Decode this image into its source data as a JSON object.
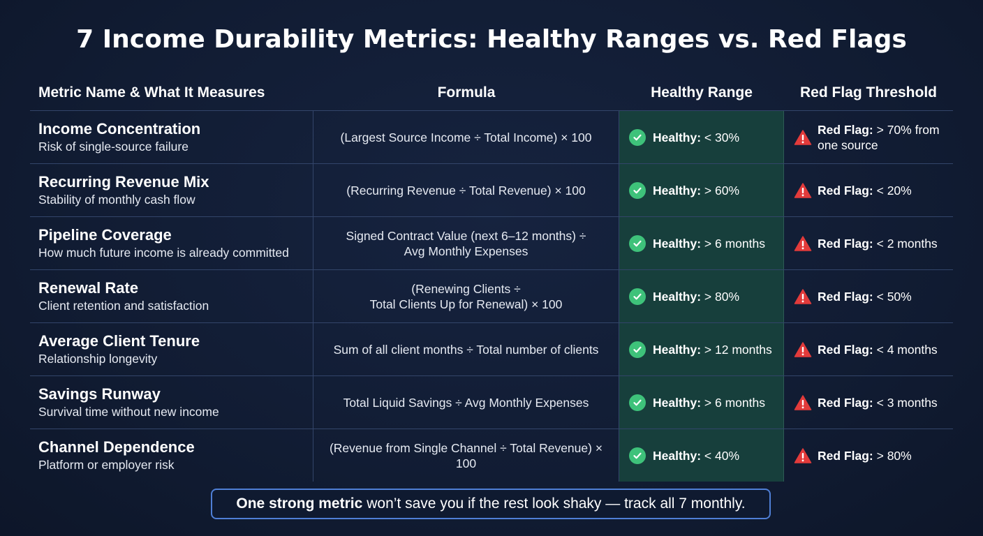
{
  "title": "7 Income Durability Metrics: Healthy Ranges vs. Red Flags",
  "headers": {
    "metric": "Metric Name & What It Measures",
    "formula": "Formula",
    "healthy": "Healthy Range",
    "red_flag": "Red Flag Threshold"
  },
  "healthy_label": "Healthy:",
  "red_flag_label": "Red Flag:",
  "rows": [
    {
      "name": "Income Concentration",
      "desc": "Risk of single-source failure",
      "formula_1": "(Largest Source Income ÷ Total Income) × 100",
      "formula_2": "",
      "healthy": "< 30%",
      "red_flag_1": "> 70% from",
      "red_flag_2": "one source"
    },
    {
      "name": "Recurring Revenue Mix",
      "desc": "Stability of monthly cash flow",
      "formula_1": "(Recurring Revenue ÷ Total Revenue) × 100",
      "formula_2": "",
      "healthy": "> 60%",
      "red_flag_1": "< 20%",
      "red_flag_2": ""
    },
    {
      "name": "Pipeline Coverage",
      "desc": "How much future income is already committed",
      "formula_1": "Signed Contract Value (next 6–12 months) ÷",
      "formula_2": "Avg Monthly Expenses",
      "healthy": "> 6 months",
      "red_flag_1": "< 2 months",
      "red_flag_2": ""
    },
    {
      "name": "Renewal Rate",
      "desc": "Client retention and satisfaction",
      "formula_1": "(Renewing Clients ÷",
      "formula_2": "Total Clients Up for Renewal) × 100",
      "healthy": "> 80%",
      "red_flag_1": "< 50%",
      "red_flag_2": ""
    },
    {
      "name": "Average Client Tenure",
      "desc": "Relationship longevity",
      "formula_1": "Sum of all client months ÷ Total number of clients",
      "formula_2": "",
      "healthy": "> 12 months",
      "red_flag_1": "< 4 months",
      "red_flag_2": ""
    },
    {
      "name": "Savings Runway",
      "desc": "Survival time without new income",
      "formula_1": "Total Liquid Savings ÷ Avg Monthly Expenses",
      "formula_2": "",
      "healthy": "> 6 months",
      "red_flag_1": "< 3 months",
      "red_flag_2": ""
    },
    {
      "name": "Channel Dependence",
      "desc": "Platform or employer risk",
      "formula_1": "(Revenue from Single Channel ÷ Total Revenue) × 100",
      "formula_2": "",
      "healthy": "< 40%",
      "red_flag_1": "> 80%",
      "red_flag_2": ""
    }
  ],
  "footer": {
    "bold": "One strong metric",
    "rest": "won’t save you if the rest look shaky — track all 7 monthly."
  },
  "colors": {
    "background": "#111c33",
    "healthy_column": "#173f3c",
    "check": "#3ec27a",
    "warning": "#e23b3b",
    "footer_border": "#4f7fd6"
  },
  "icons": {
    "healthy": "check-circle-icon",
    "red_flag": "warning-triangle-icon"
  }
}
